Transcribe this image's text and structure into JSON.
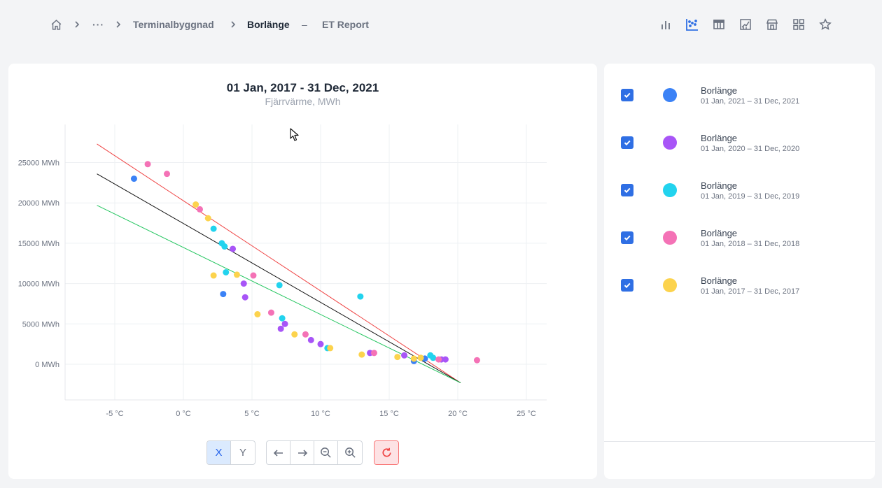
{
  "breadcrumb": {
    "ellipsis": "···",
    "item1": "Terminalbyggnad",
    "item2": "Borlänge",
    "dash": "–",
    "item3": "ET Report"
  },
  "toolbar": {
    "icons": [
      "bar-chart-icon",
      "scatter-chart-icon",
      "table-icon",
      "report-chart-icon",
      "store-icon",
      "grid-icon",
      "star-icon"
    ],
    "active_icon": "scatter-chart-icon",
    "accent_color": "#2f6fe4"
  },
  "chart_data": {
    "type": "scatter",
    "title": "01 Jan, 2017 - 31 Dec, 2021",
    "subtitle": "Fjärrvärme, MWh",
    "xlim": [
      -7,
      27
    ],
    "ylim": [
      -4000,
      29000
    ],
    "x_ticks": [
      -5,
      0,
      5,
      10,
      15,
      20,
      25
    ],
    "x_tick_labels": [
      "-5 °C",
      "0 °C",
      "5 °C",
      "10 °C",
      "15 °C",
      "20 °C",
      "25 °C"
    ],
    "y_ticks": [
      0,
      5000,
      10000,
      15000,
      20000,
      25000
    ],
    "y_tick_labels": [
      "0 MWh",
      "5000 MWh",
      "10000 MWh",
      "15000 MWh",
      "20000 MWh",
      "25000 MWh"
    ],
    "grid": true,
    "series": [
      {
        "color": "#3b82f6",
        "points": [
          [
            -3.6,
            23000
          ],
          [
            2.9,
            8700
          ],
          [
            17.6,
            700
          ],
          [
            16.8,
            400
          ]
        ]
      },
      {
        "color": "#a855f7",
        "points": [
          [
            3.6,
            14300
          ],
          [
            4.4,
            10000
          ],
          [
            4.5,
            8300
          ],
          [
            7.4,
            5000
          ],
          [
            7.1,
            4400
          ],
          [
            9.3,
            3000
          ],
          [
            10.0,
            2500
          ],
          [
            13.6,
            1400
          ],
          [
            16.1,
            1100
          ],
          [
            18.8,
            600
          ],
          [
            19.1,
            600
          ]
        ]
      },
      {
        "color": "#22d3ee",
        "points": [
          [
            2.2,
            16800
          ],
          [
            2.8,
            15000
          ],
          [
            3.0,
            14600
          ],
          [
            3.1,
            11400
          ],
          [
            7.0,
            9800
          ],
          [
            12.9,
            8400
          ],
          [
            7.2,
            5700
          ],
          [
            10.5,
            2000
          ],
          [
            18.0,
            1100
          ],
          [
            18.2,
            800
          ]
        ]
      },
      {
        "color": "#f472b6",
        "points": [
          [
            -2.6,
            24800
          ],
          [
            -1.2,
            23600
          ],
          [
            1.2,
            19200
          ],
          [
            5.1,
            11000
          ],
          [
            6.4,
            6400
          ],
          [
            8.9,
            3700
          ],
          [
            13.9,
            1400
          ],
          [
            18.6,
            600
          ],
          [
            21.4,
            500
          ]
        ]
      },
      {
        "color": "#fcd34d",
        "points": [
          [
            0.9,
            19800
          ],
          [
            1.8,
            18100
          ],
          [
            2.2,
            11000
          ],
          [
            3.9,
            11100
          ],
          [
            5.4,
            6200
          ],
          [
            8.1,
            3700
          ],
          [
            10.7,
            2000
          ],
          [
            13.0,
            1200
          ],
          [
            15.6,
            900
          ],
          [
            16.8,
            700
          ],
          [
            17.3,
            800
          ]
        ]
      }
    ],
    "fit_lines": [
      {
        "color": "#ef4444",
        "from": [
          -6.3,
          27300
        ],
        "to": [
          20.2,
          -2300
        ]
      },
      {
        "color": "#111111",
        "from": [
          -6.3,
          23600
        ],
        "to": [
          20.2,
          -2300
        ]
      },
      {
        "color": "#22c55e",
        "from": [
          -6.3,
          19700
        ],
        "to": [
          20.2,
          -2300
        ]
      }
    ]
  },
  "controls": {
    "x_label": "X",
    "y_label": "Y",
    "active_axis": "X"
  },
  "legend": {
    "items": [
      {
        "name": "Borlänge",
        "range": "01 Jan, 2021 – 31 Dec, 2021",
        "color": "#3b82f6",
        "checked": true
      },
      {
        "name": "Borlänge",
        "range": "01 Jan, 2020 – 31 Dec, 2020",
        "color": "#a855f7",
        "checked": true
      },
      {
        "name": "Borlänge",
        "range": "01 Jan, 2019 – 31 Dec, 2019",
        "color": "#22d3ee",
        "checked": true
      },
      {
        "name": "Borlänge",
        "range": "01 Jan, 2018 – 31 Dec, 2018",
        "color": "#f472b6",
        "checked": true
      },
      {
        "name": "Borlänge",
        "range": "01 Jan, 2017 – 31 Dec, 2017",
        "color": "#fcd34d",
        "checked": true
      }
    ]
  }
}
